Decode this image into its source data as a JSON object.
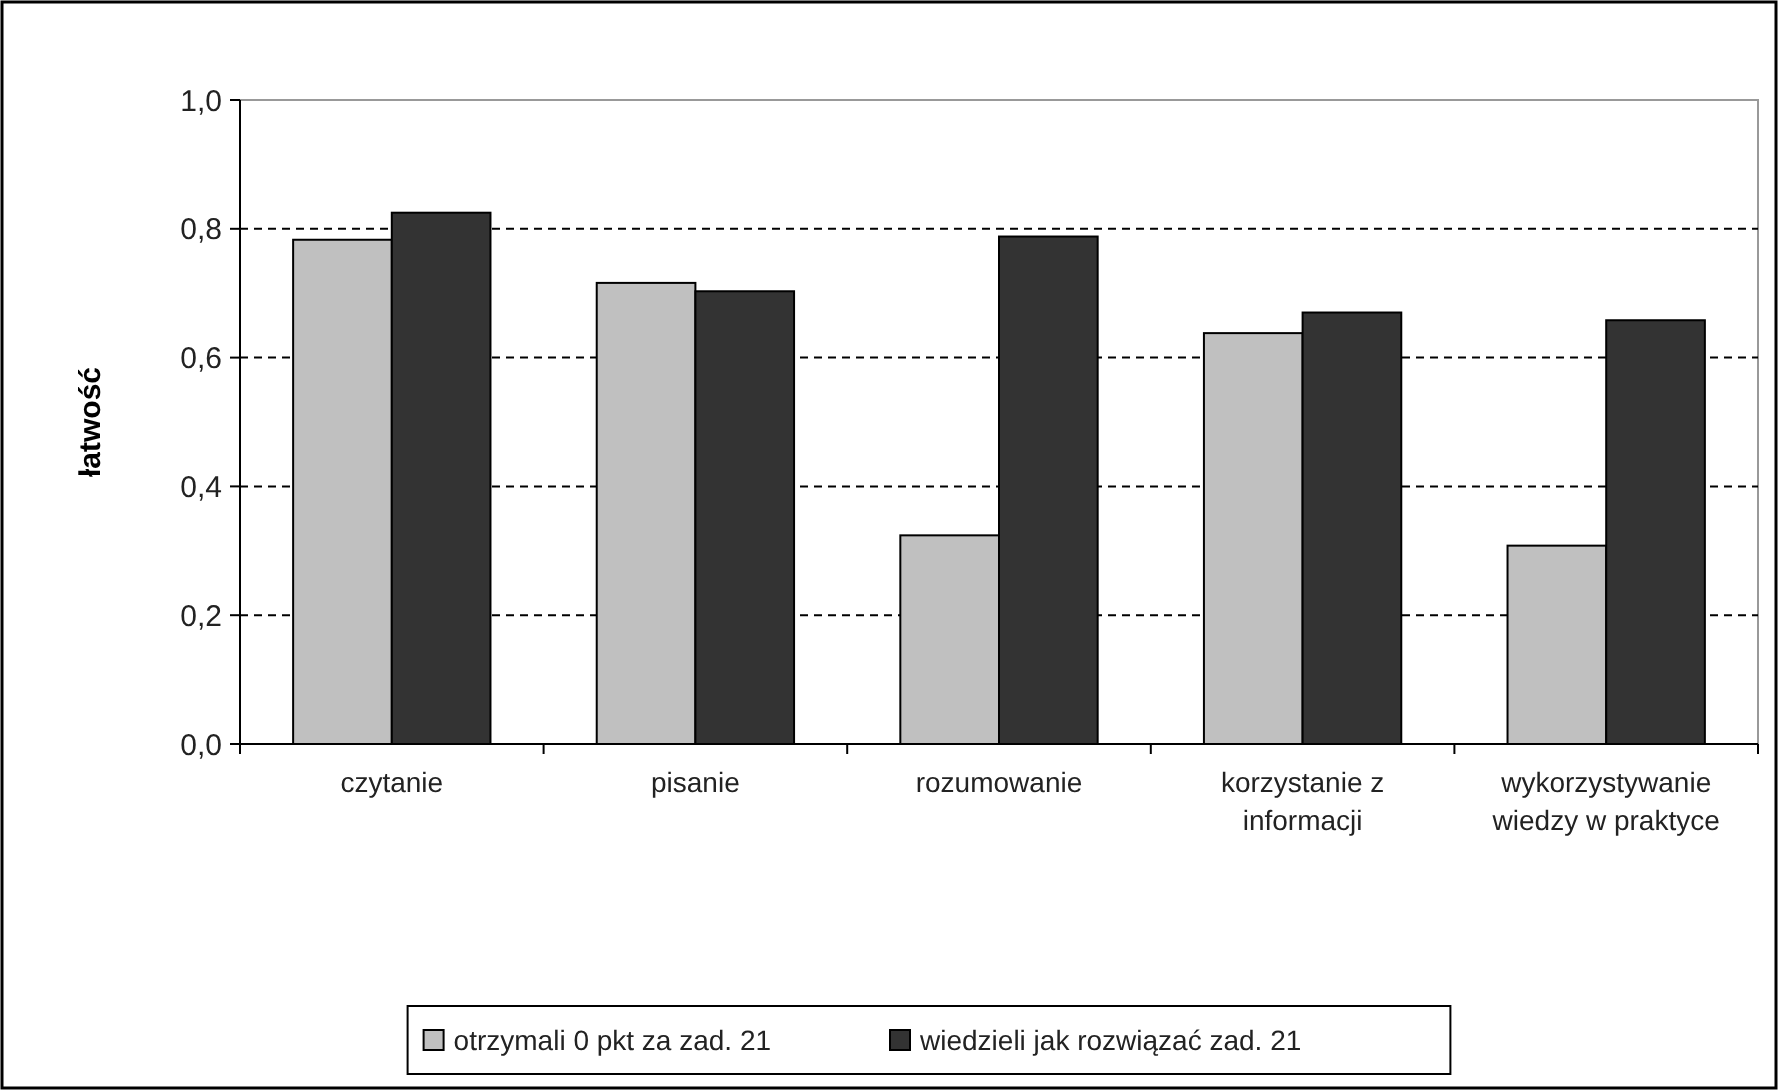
{
  "chart_data": {
    "type": "bar",
    "ylabel": "łatwość",
    "categories": [
      "czytanie",
      "pisanie",
      "rozumowanie",
      "korzystanie z informacji",
      "wykorzystywanie wiedzy w praktyce"
    ],
    "series": [
      {
        "name": "otrzymali 0 pkt za zad. 21",
        "color": "#c0c0c0",
        "values": [
          0.783,
          0.716,
          0.324,
          0.638,
          0.308
        ]
      },
      {
        "name": "wiedzieli jak rozwiązać zad. 21",
        "color": "#333333",
        "values": [
          0.825,
          0.703,
          0.788,
          0.67,
          0.658
        ]
      }
    ],
    "ylim": [
      0,
      1
    ],
    "yticks": [
      {
        "value": 0,
        "label": "0,0"
      },
      {
        "value": 0.2,
        "label": "0,2"
      },
      {
        "value": 0.4,
        "label": "0,4"
      },
      {
        "value": 0.6,
        "label": "0,6"
      },
      {
        "value": 0.8,
        "label": "0,8"
      },
      {
        "value": 1,
        "label": "1,0"
      }
    ],
    "grid": "y",
    "legend": "bottom"
  }
}
